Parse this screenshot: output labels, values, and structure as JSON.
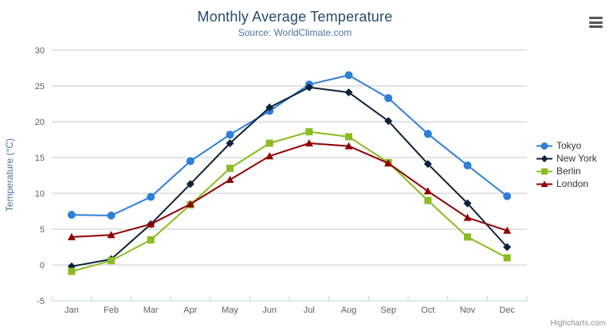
{
  "chart": {
    "title": "Monthly Average Temperature",
    "subtitle": "Source: WorldClimate.com",
    "credits": "Highcharts.com"
  },
  "colors": {
    "title": "#274b6d",
    "subtitle": "#4d759e",
    "axis_title": "#4d759e",
    "tick_label": "#606060",
    "gridline": "#c9c9c9",
    "axis_line": "#c0d0e0",
    "legend_label": "#333333",
    "credits": "#909090",
    "export_icon": "#555555",
    "background": "#ffffff"
  },
  "chart_data": {
    "type": "line",
    "title": "Monthly Average Temperature",
    "subtitle": "Source: WorldClimate.com",
    "xlabel": "",
    "ylabel": "Temperature (°C)",
    "ylim": [
      -5,
      30
    ],
    "ytick_step": 5,
    "grid": true,
    "legend_position": "right",
    "categories": [
      "Jan",
      "Feb",
      "Mar",
      "Apr",
      "May",
      "Jun",
      "Jul",
      "Aug",
      "Sep",
      "Oct",
      "Nov",
      "Dec"
    ],
    "series": [
      {
        "name": "Tokyo",
        "color": "#2f7ed8",
        "marker": "circle",
        "values": [
          7.0,
          6.9,
          9.5,
          14.5,
          18.2,
          21.5,
          25.2,
          26.5,
          23.3,
          18.3,
          13.9,
          9.6
        ]
      },
      {
        "name": "New York",
        "color": "#0d233a",
        "marker": "diamond",
        "values": [
          -0.2,
          0.8,
          5.7,
          11.3,
          17.0,
          22.0,
          24.8,
          24.1,
          20.1,
          14.1,
          8.6,
          2.5
        ]
      },
      {
        "name": "Berlin",
        "color": "#8bbc21",
        "marker": "square",
        "values": [
          -0.9,
          0.6,
          3.5,
          8.4,
          13.5,
          17.0,
          18.6,
          17.9,
          14.3,
          9.0,
          3.9,
          1.0
        ]
      },
      {
        "name": "London",
        "color": "#910000",
        "marker": "triangle",
        "values": [
          3.9,
          4.2,
          5.7,
          8.5,
          11.9,
          15.2,
          17.0,
          16.6,
          14.2,
          10.3,
          6.6,
          4.8
        ]
      }
    ]
  }
}
